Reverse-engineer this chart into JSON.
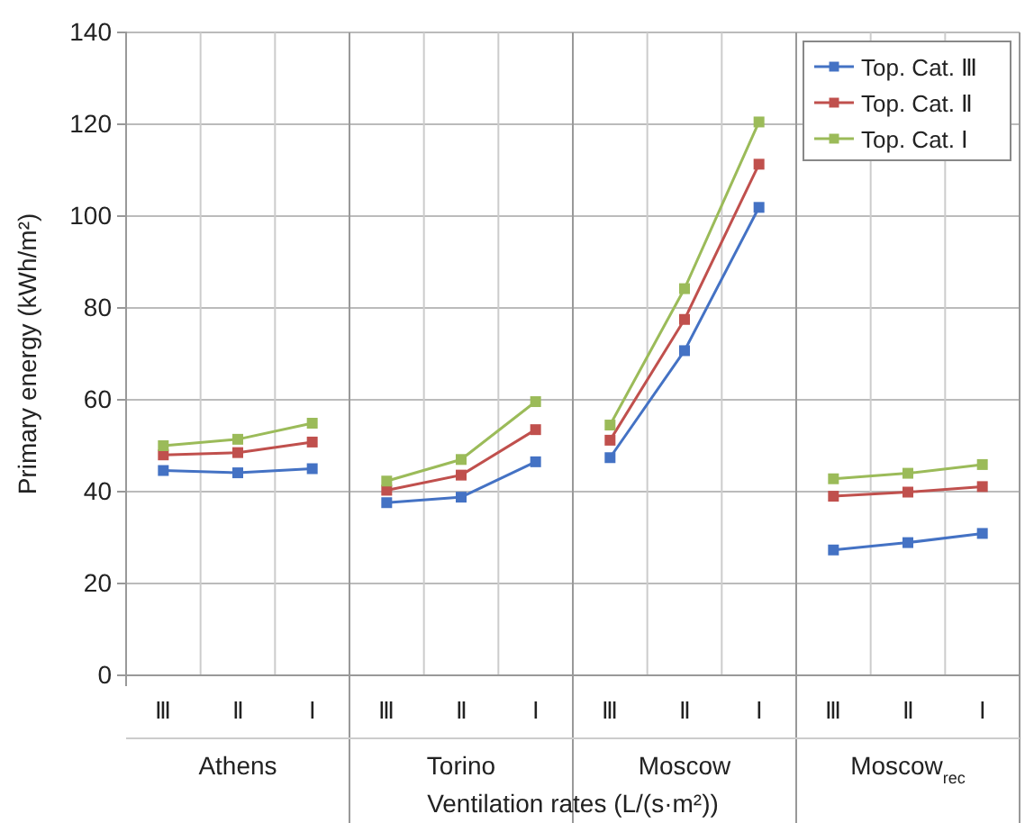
{
  "chart_data": {
    "type": "line",
    "categories": [
      "Ⅲ",
      "Ⅱ",
      "Ⅰ",
      "Ⅲ",
      "Ⅱ",
      "Ⅰ",
      "Ⅲ",
      "Ⅱ",
      "Ⅰ",
      "Ⅲ",
      "Ⅱ",
      "Ⅰ"
    ],
    "series": [
      {
        "name": "Top. Cat. Ⅲ",
        "color": "#4472c4",
        "values": [
          44.6,
          44.1,
          45.0,
          37.6,
          38.8,
          46.5,
          47.4,
          70.7,
          101.9,
          27.3,
          28.9,
          30.9
        ]
      },
      {
        "name": "Top. Cat. Ⅱ",
        "color": "#c0504d",
        "values": [
          48.0,
          48.5,
          50.8,
          40.3,
          43.6,
          53.5,
          51.2,
          77.5,
          111.3,
          39.0,
          39.9,
          41.1
        ]
      },
      {
        "name": "Top. Cat. Ⅰ",
        "color": "#9bbb59",
        "values": [
          50.0,
          51.4,
          54.9,
          42.3,
          47.0,
          59.6,
          54.5,
          84.2,
          120.5,
          42.8,
          44.0,
          45.9
        ]
      }
    ],
    "annotations": [
      "Athens",
      "Torino",
      "Moscow",
      "Moscow$_{rec}$"
    ],
    "xlabel": "Ventilation rates (L/(s·m²))",
    "ylabel": "Primary energy (kWh/m²)",
    "ylim": [
      0,
      140
    ],
    "yticks": [
      0,
      20,
      40,
      60,
      80,
      100,
      120,
      140
    ],
    "grid": true,
    "legend": "top right",
    "marker": "square",
    "line_style": "solid"
  }
}
